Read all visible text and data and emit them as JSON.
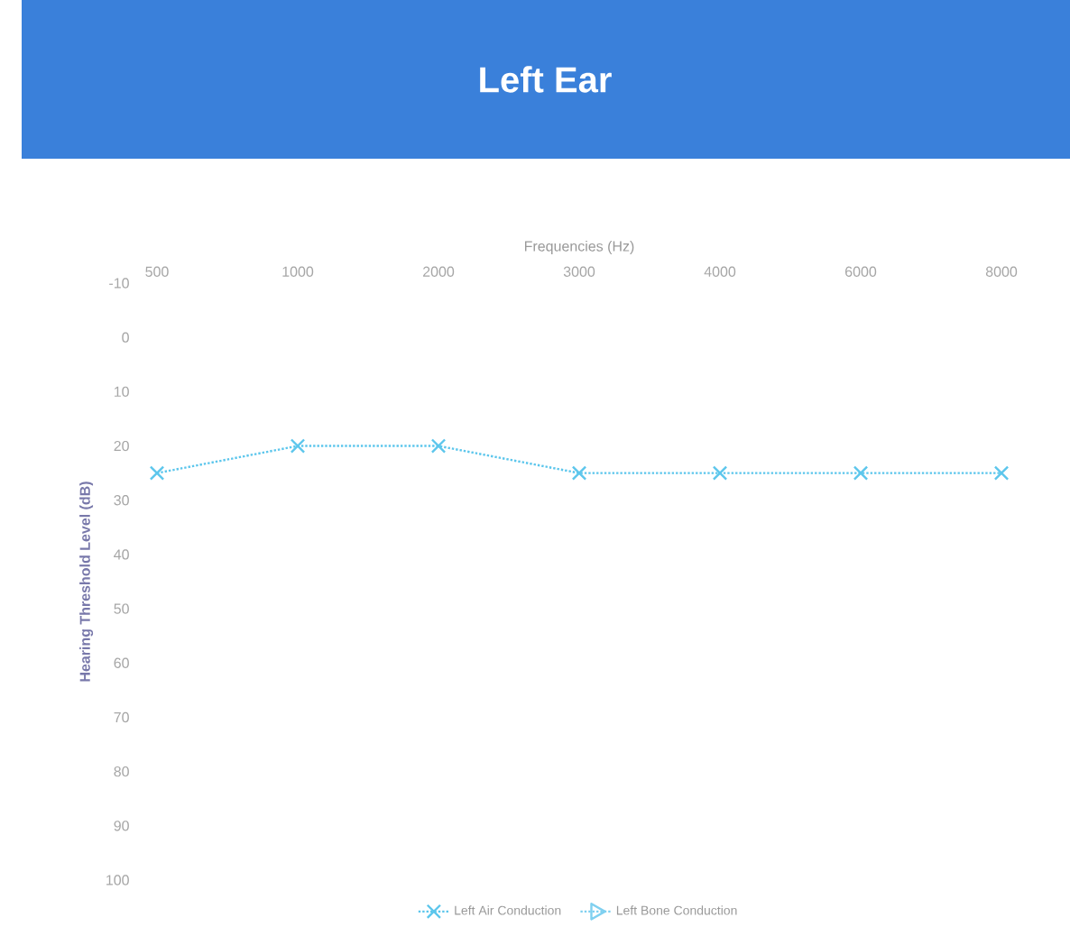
{
  "chart_data": {
    "type": "line",
    "title": "Left Ear",
    "xlabel": "Frequencies (Hz)",
    "ylabel": "Hearing Threshold Level (dB)",
    "categories": [
      "500",
      "1000",
      "2000",
      "3000",
      "4000",
      "6000",
      "8000"
    ],
    "series": [
      {
        "name": "Left Air Conduction",
        "color": "#5cc6ec",
        "values": [
          25,
          20,
          20,
          25,
          25,
          25,
          25
        ],
        "marker": "cross"
      },
      {
        "name": "Left Bone Conduction",
        "color": "#7fd0f0",
        "values": [
          null,
          null,
          null,
          null,
          null,
          null,
          null
        ],
        "marker": "triangle"
      }
    ],
    "ylim": [
      100,
      -10
    ],
    "yticks": [
      -10,
      0,
      10,
      20,
      30,
      40,
      50,
      60,
      70,
      80,
      90,
      100
    ],
    "line_style": "dotted",
    "legend": "bottom",
    "grid": false
  }
}
